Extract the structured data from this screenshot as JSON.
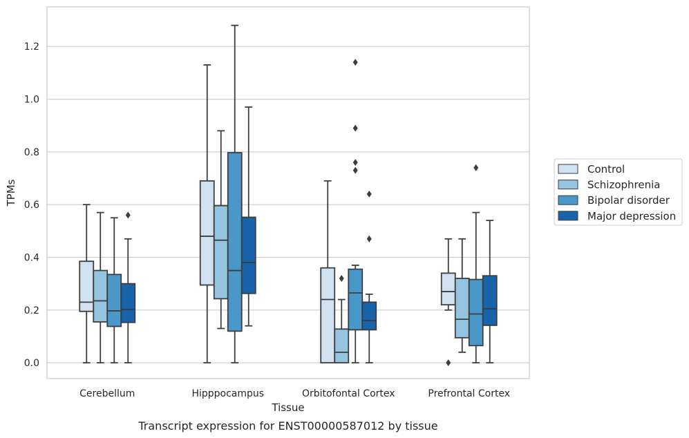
{
  "chart_data": {
    "type": "box",
    "caption": "Transcript expression for ENST00000587012 by tissue",
    "xlabel": "Tissue",
    "ylabel": "TPMs",
    "ylim": [
      -0.06,
      1.35
    ],
    "yticks": [
      0.0,
      0.2,
      0.4,
      0.6,
      0.8,
      1.0,
      1.2
    ],
    "ytick_labels": [
      "0.0",
      "0.2",
      "0.4",
      "0.6",
      "0.8",
      "1.0",
      "1.2"
    ],
    "grid": true,
    "legend_position": "right",
    "categories": [
      "Cerebellum",
      "Hipppocampus",
      "Orbitofontal Cortex",
      "Prefrontal Cortex"
    ],
    "series": [
      {
        "name": "Control",
        "color": "#d0e1f2",
        "boxes": [
          {
            "whislo": 0.0,
            "q1": 0.195,
            "med": 0.23,
            "q3": 0.385,
            "whishi": 0.6,
            "fliers": []
          },
          {
            "whislo": 0.0,
            "q1": 0.295,
            "med": 0.48,
            "q3": 0.69,
            "whishi": 1.13,
            "fliers": []
          },
          {
            "whislo": 0.0,
            "q1": 0.0,
            "med": 0.24,
            "q3": 0.36,
            "whishi": 0.69,
            "fliers": []
          },
          {
            "whislo": 0.2,
            "q1": 0.22,
            "med": 0.27,
            "q3": 0.34,
            "whishi": 0.47,
            "fliers": [
              0.0
            ]
          }
        ]
      },
      {
        "name": "Schizophrenia",
        "color": "#94c4df",
        "boxes": [
          {
            "whislo": 0.0,
            "q1": 0.155,
            "med": 0.235,
            "q3": 0.35,
            "whishi": 0.57,
            "fliers": []
          },
          {
            "whislo": 0.13,
            "q1": 0.243,
            "med": 0.465,
            "q3": 0.596,
            "whishi": 0.88,
            "fliers": []
          },
          {
            "whislo": 0.0,
            "q1": 0.0,
            "med": 0.04,
            "q3": 0.128,
            "whishi": 0.24,
            "fliers": [
              0.32
            ]
          },
          {
            "whislo": 0.04,
            "q1": 0.095,
            "med": 0.165,
            "q3": 0.32,
            "whishi": 0.47,
            "fliers": []
          }
        ]
      },
      {
        "name": "Bipolar disorder",
        "color": "#4a98c9",
        "boxes": [
          {
            "whislo": 0.0,
            "q1": 0.138,
            "med": 0.197,
            "q3": 0.335,
            "whishi": 0.55,
            "fliers": []
          },
          {
            "whislo": 0.0,
            "q1": 0.12,
            "med": 0.35,
            "q3": 0.797,
            "whishi": 1.28,
            "fliers": []
          },
          {
            "whislo": 0.0,
            "q1": 0.125,
            "med": 0.265,
            "q3": 0.355,
            "whishi": 0.37,
            "fliers": [
              0.89,
              0.76,
              0.73,
              1.14
            ]
          },
          {
            "whislo": 0.0,
            "q1": 0.065,
            "med": 0.185,
            "q3": 0.316,
            "whishi": 0.57,
            "fliers": [
              0.74
            ]
          }
        ]
      },
      {
        "name": "Major depression",
        "color": "#1764ab",
        "boxes": [
          {
            "whislo": 0.0,
            "q1": 0.153,
            "med": 0.202,
            "q3": 0.3,
            "whishi": 0.47,
            "fliers": [
              0.56
            ]
          },
          {
            "whislo": 0.14,
            "q1": 0.263,
            "med": 0.38,
            "q3": 0.552,
            "whishi": 0.97,
            "fliers": []
          },
          {
            "whislo": 0.0,
            "q1": 0.125,
            "med": 0.16,
            "q3": 0.23,
            "whishi": 0.26,
            "fliers": [
              0.64,
              0.47
            ]
          },
          {
            "whislo": 0.0,
            "q1": 0.142,
            "med": 0.205,
            "q3": 0.33,
            "whishi": 0.54,
            "fliers": []
          }
        ]
      }
    ]
  }
}
